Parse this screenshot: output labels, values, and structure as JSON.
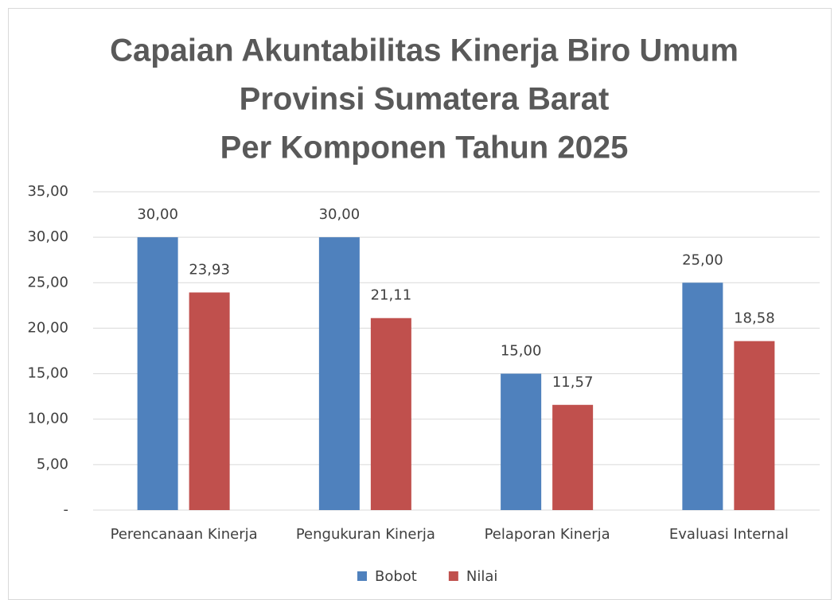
{
  "chart_data": {
    "type": "bar",
    "title": [
      "Capaian Akuntabilitas Kinerja Biro Umum",
      "Provinsi Sumatera Barat",
      "Per Komponen Tahun 2025"
    ],
    "categories": [
      "Perencanaan Kinerja",
      "Pengukuran Kinerja",
      "Pelaporan Kinerja",
      "Evaluasi Internal"
    ],
    "series": [
      {
        "name": "Bobot",
        "color": "#4f81bd",
        "values": [
          30,
          30,
          15,
          25
        ],
        "value_labels": [
          "30,00",
          "30,00",
          "15,00",
          "25,00"
        ]
      },
      {
        "name": "Nilai",
        "color": "#c0504d",
        "values": [
          23.93,
          21.11,
          11.57,
          18.58
        ],
        "value_labels": [
          "23,93",
          "21,11",
          "11,57",
          "18,58"
        ]
      }
    ],
    "ylim": [
      0,
      35
    ],
    "yticks": [
      {
        "value": 0,
        "label": "-"
      },
      {
        "value": 5,
        "label": "5,00"
      },
      {
        "value": 10,
        "label": "10,00"
      },
      {
        "value": 15,
        "label": "15,00"
      },
      {
        "value": 20,
        "label": "20,00"
      },
      {
        "value": 25,
        "label": "25,00"
      },
      {
        "value": 30,
        "label": "30,00"
      },
      {
        "value": 35,
        "label": "35,00"
      }
    ],
    "grid": true,
    "legend": "bottom"
  }
}
